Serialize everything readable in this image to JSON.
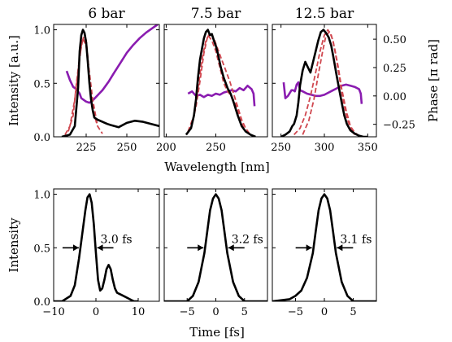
{
  "colors": {
    "measured": "#000000",
    "retrieved": "#d0474f",
    "phase": "#8a1cb0"
  },
  "chart_data": [
    {
      "type": "line",
      "title": "6 bar",
      "xlim": [
        205,
        270
      ],
      "ylim": [
        0,
        1.05
      ],
      "xticks": [
        225,
        250
      ],
      "yticks": [
        0.0,
        0.5,
        1.0
      ],
      "ylabel": "Intensity [a.u.]",
      "series": [
        {
          "style": "measured",
          "x": [
            210,
            215,
            218,
            220,
            221,
            222,
            223,
            224,
            225,
            226,
            227,
            228,
            229,
            230,
            232,
            235,
            238,
            240,
            245,
            250,
            255,
            260,
            265,
            270
          ],
          "y": [
            0.0,
            0.02,
            0.1,
            0.45,
            0.8,
            0.95,
            1.0,
            0.97,
            0.88,
            0.7,
            0.5,
            0.35,
            0.25,
            0.18,
            0.16,
            0.14,
            0.12,
            0.11,
            0.09,
            0.13,
            0.15,
            0.14,
            0.12,
            0.1
          ]
        },
        {
          "style": "retrieved",
          "x": [
            212,
            215,
            218,
            220,
            222,
            224,
            225,
            226,
            227,
            228,
            230,
            232,
            235
          ],
          "y": [
            0.02,
            0.1,
            0.35,
            0.6,
            0.85,
            0.97,
            0.9,
            0.75,
            0.55,
            0.4,
            0.2,
            0.1,
            0.03
          ]
        },
        {
          "style": "retrieved",
          "x": [
            214,
            217,
            219,
            221,
            223,
            225,
            227,
            229,
            232
          ],
          "y": [
            0.05,
            0.2,
            0.5,
            0.75,
            0.92,
            0.85,
            0.6,
            0.35,
            0.1
          ]
        },
        {
          "style": "phase",
          "axis": "right",
          "x": [
            213,
            215,
            217,
            219,
            221,
            222,
            224,
            225,
            227,
            229,
            231,
            233,
            235,
            237,
            239,
            242,
            246,
            250,
            254,
            258,
            262,
            266,
            269
          ],
          "y": [
            0.22,
            0.14,
            0.08,
            0.06,
            0.02,
            -0.02,
            -0.04,
            -0.05,
            -0.06,
            -0.04,
            -0.01,
            0.02,
            0.05,
            0.09,
            0.13,
            0.2,
            0.29,
            0.38,
            0.45,
            0.51,
            0.56,
            0.6,
            0.63
          ]
        }
      ]
    },
    {
      "type": "line",
      "title": "7.5 bar",
      "xlim": [
        198,
        302
      ],
      "ylim": [
        0,
        1.05
      ],
      "xticks": [
        200,
        250
      ],
      "series": [
        {
          "style": "measured",
          "x": [
            220,
            225,
            228,
            230,
            232,
            234,
            236,
            238,
            240,
            242,
            244,
            246,
            248,
            250,
            252,
            255,
            258,
            262,
            265,
            268,
            272,
            276,
            280,
            285,
            290
          ],
          "y": [
            0.02,
            0.08,
            0.2,
            0.35,
            0.55,
            0.72,
            0.82,
            0.92,
            0.98,
            1.0,
            0.95,
            0.96,
            0.9,
            0.85,
            0.78,
            0.65,
            0.55,
            0.45,
            0.4,
            0.32,
            0.2,
            0.1,
            0.05,
            0.02,
            0.0
          ]
        },
        {
          "style": "retrieved",
          "x": [
            222,
            228,
            232,
            236,
            240,
            244,
            248,
            252,
            256,
            260,
            264,
            268,
            272,
            276,
            280,
            284
          ],
          "y": [
            0.05,
            0.2,
            0.45,
            0.72,
            0.9,
            0.97,
            0.92,
            0.82,
            0.72,
            0.62,
            0.52,
            0.4,
            0.28,
            0.16,
            0.08,
            0.03
          ]
        },
        {
          "style": "retrieved",
          "x": [
            225,
            230,
            234,
            238,
            242,
            246,
            250,
            254,
            258,
            262,
            266,
            270,
            274,
            278
          ],
          "y": [
            0.08,
            0.28,
            0.52,
            0.78,
            0.95,
            0.9,
            0.8,
            0.65,
            0.5,
            0.42,
            0.38,
            0.3,
            0.18,
            0.08
          ]
        },
        {
          "style": "phase",
          "axis": "right",
          "x": [
            222,
            226,
            230,
            234,
            238,
            242,
            246,
            250,
            254,
            258,
            262,
            266,
            270,
            274,
            278,
            282,
            286,
            288,
            289
          ],
          "y": [
            0.02,
            0.04,
            0.0,
            0.01,
            -0.01,
            0.01,
            0.0,
            0.02,
            0.01,
            0.03,
            0.04,
            0.05,
            0.04,
            0.07,
            0.05,
            0.09,
            0.06,
            0.02,
            -0.09
          ]
        }
      ]
    },
    {
      "type": "line",
      "title": "12.5 bar",
      "xlim": [
        240,
        360
      ],
      "ylim": [
        0,
        1.05
      ],
      "y2lim": [
        -0.36,
        0.63
      ],
      "xticks": [
        250,
        300,
        350
      ],
      "y2ticks": [
        -0.25,
        0.0,
        0.25,
        0.5
      ],
      "y2label": "Phase [π rad]",
      "series": [
        {
          "style": "measured",
          "x": [
            250,
            255,
            260,
            263,
            265,
            268,
            270,
            272,
            275,
            278,
            281,
            284,
            287,
            290,
            293,
            296,
            299,
            302,
            305,
            308,
            311,
            314,
            317,
            320,
            323,
            326,
            330,
            335,
            340,
            345,
            350
          ],
          "y": [
            0.0,
            0.02,
            0.05,
            0.1,
            0.12,
            0.2,
            0.32,
            0.48,
            0.62,
            0.7,
            0.65,
            0.6,
            0.7,
            0.8,
            0.9,
            0.98,
            1.0,
            0.97,
            0.93,
            0.85,
            0.72,
            0.58,
            0.45,
            0.32,
            0.2,
            0.12,
            0.06,
            0.03,
            0.01,
            0.0,
            0.0
          ]
        },
        {
          "style": "retrieved",
          "x": [
            265,
            272,
            278,
            284,
            290,
            295,
            300,
            304,
            308,
            312,
            316,
            320,
            325,
            330,
            335,
            340
          ],
          "y": [
            0.02,
            0.08,
            0.2,
            0.38,
            0.6,
            0.8,
            0.95,
            1.0,
            0.95,
            0.82,
            0.65,
            0.45,
            0.25,
            0.1,
            0.04,
            0.01
          ]
        },
        {
          "style": "retrieved",
          "x": [
            275,
            282,
            288,
            293,
            298,
            302,
            306,
            310,
            314,
            318,
            322,
            326,
            330,
            335
          ],
          "y": [
            0.02,
            0.15,
            0.35,
            0.58,
            0.8,
            0.95,
            0.98,
            0.9,
            0.72,
            0.52,
            0.32,
            0.18,
            0.08,
            0.02
          ]
        },
        {
          "style": "phase",
          "axis": "right",
          "x": [
            253,
            255,
            258,
            262,
            264,
            266,
            268,
            270,
            272,
            275,
            280,
            285,
            290,
            295,
            300,
            305,
            310,
            315,
            320,
            325,
            330,
            335,
            340,
            342,
            343
          ],
          "y": [
            0.12,
            -0.02,
            0.0,
            0.05,
            0.05,
            0.04,
            0.1,
            0.12,
            0.05,
            0.04,
            0.02,
            0.01,
            0.0,
            0.0,
            0.01,
            0.03,
            0.05,
            0.07,
            0.09,
            0.1,
            0.09,
            0.08,
            0.06,
            0.02,
            -0.07
          ]
        }
      ]
    },
    {
      "type": "line",
      "xlim": [
        -10,
        15
      ],
      "ylim": [
        0,
        1.05
      ],
      "xticks": [
        -10,
        0,
        10
      ],
      "yticks": [
        0.0,
        0.5,
        1.0
      ],
      "ylabel": "Intensity",
      "annotation": "3.0 fs",
      "series": [
        {
          "style": "measured",
          "x": [
            -10,
            -8,
            -6,
            -5,
            -4,
            -3,
            -2.5,
            -2,
            -1.5,
            -1,
            -0.5,
            0,
            0.5,
            1,
            1.5,
            2,
            2.5,
            3,
            3.5,
            4,
            4.5,
            5,
            5.5,
            6,
            7,
            8,
            9,
            10
          ],
          "y": [
            0.0,
            0.0,
            0.05,
            0.15,
            0.4,
            0.7,
            0.85,
            0.97,
            1.0,
            0.92,
            0.72,
            0.45,
            0.2,
            0.1,
            0.12,
            0.2,
            0.3,
            0.34,
            0.3,
            0.2,
            0.12,
            0.08,
            0.07,
            0.06,
            0.04,
            0.02,
            0.0,
            0.0
          ]
        }
      ]
    },
    {
      "type": "line",
      "xlim": [
        -9,
        9
      ],
      "ylim": [
        0,
        1.05
      ],
      "xticks": [
        -5,
        0,
        5
      ],
      "annotation": "3.2 fs",
      "series": [
        {
          "style": "measured",
          "x": [
            -9,
            -5,
            -4,
            -3,
            -2,
            -1.5,
            -1,
            -0.5,
            0,
            0.5,
            1,
            1.5,
            2,
            3,
            4,
            5,
            9
          ],
          "y": [
            0.0,
            0.0,
            0.05,
            0.18,
            0.45,
            0.65,
            0.85,
            0.96,
            1.0,
            0.96,
            0.85,
            0.65,
            0.45,
            0.18,
            0.05,
            0.0,
            0.0
          ]
        }
      ]
    },
    {
      "type": "line",
      "xlim": [
        -9,
        9
      ],
      "ylim": [
        0,
        1.05
      ],
      "xticks": [
        -5,
        0,
        5
      ],
      "annotation": "3.1 fs",
      "series": [
        {
          "style": "measured",
          "x": [
            -9,
            -6,
            -5,
            -4,
            -3,
            -2,
            -1.5,
            -1,
            -0.5,
            0,
            0.5,
            1,
            1.5,
            2,
            3,
            4,
            5,
            9
          ],
          "y": [
            0.0,
            0.02,
            0.05,
            0.1,
            0.22,
            0.45,
            0.65,
            0.85,
            0.96,
            1.0,
            0.96,
            0.85,
            0.65,
            0.45,
            0.18,
            0.05,
            0.0,
            0.0
          ]
        }
      ]
    }
  ],
  "axes_labels": {
    "wavelength": "Wavelength [nm]",
    "time": "Time [fs]"
  }
}
